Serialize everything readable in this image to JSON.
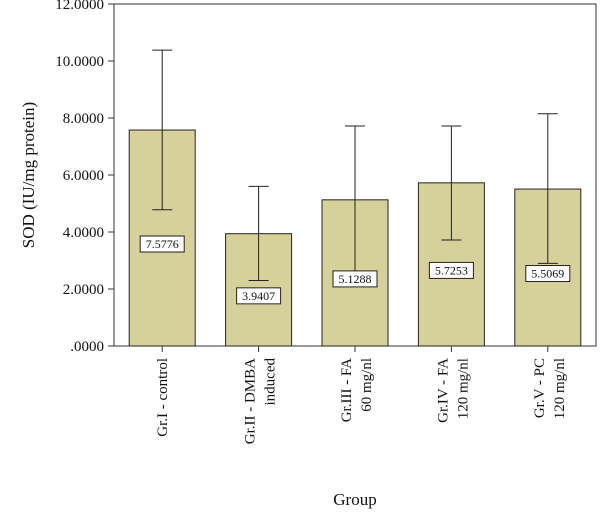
{
  "chart_data": {
    "type": "bar",
    "xlabel": "Group",
    "ylabel": "SOD (IU/mg protein)",
    "ylim": [
      0,
      12
    ],
    "yticks": [
      ".0000",
      "2.0000",
      "4.0000",
      "6.0000",
      "8.0000",
      "10.0000",
      "12.0000"
    ],
    "ytick_values": [
      0,
      2,
      4,
      6,
      8,
      10,
      12
    ],
    "categories": [
      [
        "Gr.I - control"
      ],
      [
        "Gr.II - DMBA",
        "induced"
      ],
      [
        "Gr.III - FA",
        "60 mg/nl"
      ],
      [
        "Gr.IV - FA",
        "120 mg/nl"
      ],
      [
        "Gr.V - PC",
        "120 mg/nl"
      ]
    ],
    "values": [
      7.5776,
      3.9407,
      5.1288,
      5.7253,
      5.5069
    ],
    "data_labels": [
      "7.5776",
      "3.9407",
      "5.1288",
      "5.7253",
      "5.5069"
    ],
    "error_upper": [
      10.38,
      5.6,
      7.72,
      7.72,
      8.15
    ],
    "error_lower": [
      4.78,
      2.3,
      2.6,
      3.72,
      2.9
    ],
    "bar_color": "#d6d09b",
    "grid": false
  }
}
